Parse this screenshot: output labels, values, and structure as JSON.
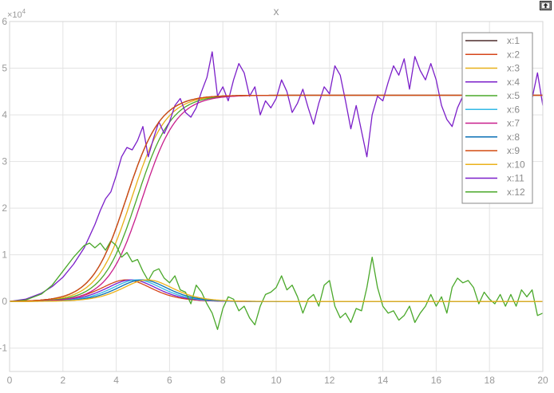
{
  "window": {
    "undock_icon": "undock-arrow-icon"
  },
  "colors": {
    "background": "#ffffff",
    "grid": "#e3e3e3",
    "axis_text": "#9a9a9a",
    "legend_border": "#8a8a8a",
    "legend_text": "#8a8a8a"
  },
  "chart_data": {
    "type": "line",
    "title": "x",
    "xlabel": "",
    "ylabel": "",
    "exponent_label": "×10",
    "exponent_power": "4",
    "xlim": [
      0,
      20
    ],
    "ylim": [
      -15000,
      60000
    ],
    "xticks": [
      0,
      2,
      4,
      6,
      8,
      10,
      12,
      14,
      16,
      18,
      20
    ],
    "yticks": [
      -10000,
      0,
      10000,
      20000,
      30000,
      40000,
      50000,
      60000
    ],
    "ytick_labels": [
      "-1",
      "0",
      "1",
      "2",
      "3",
      "4",
      "5",
      "6"
    ],
    "grid": true,
    "legend_position": "top-right",
    "logistic": {
      "K": 44200,
      "P0": 50,
      "r": 1.55
    },
    "series": [
      {
        "name": "x:1",
        "color": "#4d2c2c",
        "kind": "logistic",
        "delay": 0.0
      },
      {
        "name": "x:2",
        "color": "#d6451a",
        "kind": "prey",
        "delay": 0.0
      },
      {
        "name": "x:3",
        "color": "#e8b018",
        "kind": "logistic",
        "delay": 0.2
      },
      {
        "name": "x:4",
        "color": "#7b1fc9",
        "kind": "prey",
        "delay": 0.2
      },
      {
        "name": "x:5",
        "color": "#4aa82a",
        "kind": "logistic",
        "delay": 0.4
      },
      {
        "name": "x:6",
        "color": "#33b9e6",
        "kind": "prey",
        "delay": 0.4
      },
      {
        "name": "x:7",
        "color": "#c81e8c",
        "kind": "logistic",
        "delay": 0.6
      },
      {
        "name": "x:8",
        "color": "#0a6fb5",
        "kind": "prey",
        "delay": 0.6
      },
      {
        "name": "x:9",
        "color": "#d34c10",
        "kind": "logistic",
        "delay": 0.0,
        "final": true
      },
      {
        "name": "x:10",
        "color": "#ebb21a",
        "kind": "prey",
        "delay": 0.8,
        "final": true
      },
      {
        "name": "x:11",
        "color": "#7b1fc9",
        "kind": "noisy_logistic",
        "delay": 0.8,
        "points": [
          [
            0.0,
            0
          ],
          [
            0.6,
            500
          ],
          [
            1.2,
            1800
          ],
          [
            1.6,
            3200
          ],
          [
            2.0,
            5200
          ],
          [
            2.4,
            8000
          ],
          [
            2.8,
            11500
          ],
          [
            3.0,
            14000
          ],
          [
            3.2,
            16500
          ],
          [
            3.4,
            19500
          ],
          [
            3.6,
            22000
          ],
          [
            3.8,
            23500
          ],
          [
            4.0,
            27000
          ],
          [
            4.2,
            31000
          ],
          [
            4.4,
            33000
          ],
          [
            4.6,
            32500
          ],
          [
            4.8,
            34500
          ],
          [
            5.0,
            37500
          ],
          [
            5.2,
            31000
          ],
          [
            5.4,
            35000
          ],
          [
            5.6,
            38500
          ],
          [
            5.8,
            36000
          ],
          [
            6.0,
            38500
          ],
          [
            6.2,
            42000
          ],
          [
            6.4,
            43500
          ],
          [
            6.6,
            40500
          ],
          [
            6.8,
            39500
          ],
          [
            7.0,
            41500
          ],
          [
            7.2,
            45000
          ],
          [
            7.4,
            48000
          ],
          [
            7.6,
            53500
          ],
          [
            7.8,
            44000
          ],
          [
            8.0,
            46000
          ],
          [
            8.2,
            43000
          ],
          [
            8.4,
            47500
          ],
          [
            8.6,
            51000
          ],
          [
            8.8,
            49000
          ],
          [
            9.0,
            44000
          ],
          [
            9.2,
            46000
          ],
          [
            9.4,
            40000
          ],
          [
            9.6,
            43000
          ],
          [
            9.8,
            41500
          ],
          [
            10.0,
            43500
          ],
          [
            10.2,
            47500
          ],
          [
            10.4,
            45000
          ],
          [
            10.6,
            40500
          ],
          [
            10.8,
            42500
          ],
          [
            11.0,
            45500
          ],
          [
            11.2,
            41500
          ],
          [
            11.4,
            38000
          ],
          [
            11.6,
            42500
          ],
          [
            11.8,
            46000
          ],
          [
            12.0,
            44500
          ],
          [
            12.2,
            50500
          ],
          [
            12.4,
            48500
          ],
          [
            12.6,
            43000
          ],
          [
            12.8,
            37000
          ],
          [
            13.0,
            42000
          ],
          [
            13.2,
            36500
          ],
          [
            13.4,
            31000
          ],
          [
            13.6,
            40000
          ],
          [
            13.8,
            44000
          ],
          [
            14.0,
            43000
          ],
          [
            14.2,
            47000
          ],
          [
            14.4,
            50500
          ],
          [
            14.6,
            48500
          ],
          [
            14.8,
            52000
          ],
          [
            15.0,
            45500
          ],
          [
            15.2,
            52500
          ],
          [
            15.4,
            49500
          ],
          [
            15.6,
            47500
          ],
          [
            15.8,
            51000
          ],
          [
            16.0,
            47500
          ],
          [
            16.2,
            42000
          ],
          [
            16.4,
            39000
          ],
          [
            16.6,
            37500
          ],
          [
            16.8,
            41500
          ],
          [
            17.0,
            44000
          ],
          [
            17.2,
            40500
          ],
          [
            17.4,
            45500
          ],
          [
            17.6,
            43500
          ],
          [
            17.8,
            46500
          ],
          [
            18.0,
            41000
          ],
          [
            18.2,
            44500
          ],
          [
            18.4,
            47500
          ],
          [
            18.6,
            40500
          ],
          [
            18.8,
            42000
          ],
          [
            19.0,
            46000
          ],
          [
            19.2,
            43000
          ],
          [
            19.4,
            46500
          ],
          [
            19.6,
            43500
          ],
          [
            19.8,
            49000
          ],
          [
            20.0,
            42000
          ]
        ]
      },
      {
        "name": "x:12",
        "color": "#4aa82a",
        "kind": "noisy_prey",
        "delay": 0.8,
        "points": [
          [
            0.0,
            0
          ],
          [
            0.6,
            300
          ],
          [
            1.2,
            1600
          ],
          [
            1.6,
            3500
          ],
          [
            2.0,
            6500
          ],
          [
            2.4,
            9500
          ],
          [
            2.8,
            12000
          ],
          [
            3.0,
            12500
          ],
          [
            3.2,
            11500
          ],
          [
            3.4,
            12500
          ],
          [
            3.6,
            11000
          ],
          [
            3.8,
            13000
          ],
          [
            4.0,
            12000
          ],
          [
            4.2,
            9500
          ],
          [
            4.4,
            10500
          ],
          [
            4.6,
            8500
          ],
          [
            4.8,
            9000
          ],
          [
            5.0,
            6500
          ],
          [
            5.2,
            4500
          ],
          [
            5.4,
            6500
          ],
          [
            5.6,
            7000
          ],
          [
            5.8,
            5000
          ],
          [
            6.0,
            4000
          ],
          [
            6.2,
            5500
          ],
          [
            6.4,
            2500
          ],
          [
            6.6,
            2000
          ],
          [
            6.8,
            -500
          ],
          [
            7.0,
            3500
          ],
          [
            7.2,
            2000
          ],
          [
            7.4,
            -500
          ],
          [
            7.6,
            -2500
          ],
          [
            7.8,
            -6000
          ],
          [
            8.0,
            -1500
          ],
          [
            8.2,
            1000
          ],
          [
            8.4,
            500
          ],
          [
            8.6,
            -2000
          ],
          [
            8.8,
            -1000
          ],
          [
            9.0,
            -3500
          ],
          [
            9.2,
            -5000
          ],
          [
            9.4,
            -1000
          ],
          [
            9.6,
            1500
          ],
          [
            9.8,
            2000
          ],
          [
            10.0,
            3000
          ],
          [
            10.2,
            5500
          ],
          [
            10.4,
            2500
          ],
          [
            10.6,
            3500
          ],
          [
            10.8,
            1000
          ],
          [
            11.0,
            -2500
          ],
          [
            11.2,
            500
          ],
          [
            11.4,
            1500
          ],
          [
            11.6,
            -1000
          ],
          [
            11.8,
            3500
          ],
          [
            12.0,
            4500
          ],
          [
            12.2,
            -1000
          ],
          [
            12.4,
            -3500
          ],
          [
            12.6,
            -2500
          ],
          [
            12.8,
            -4500
          ],
          [
            13.0,
            -1500
          ],
          [
            13.2,
            -2000
          ],
          [
            13.4,
            3000
          ],
          [
            13.6,
            9500
          ],
          [
            13.8,
            3000
          ],
          [
            14.0,
            -1000
          ],
          [
            14.2,
            -2500
          ],
          [
            14.4,
            -2000
          ],
          [
            14.6,
            -4000
          ],
          [
            14.8,
            -3000
          ],
          [
            15.0,
            -1000
          ],
          [
            15.2,
            -4500
          ],
          [
            15.4,
            -2500
          ],
          [
            15.6,
            -1000
          ],
          [
            15.8,
            1500
          ],
          [
            16.0,
            -1000
          ],
          [
            16.2,
            1000
          ],
          [
            16.4,
            -2500
          ],
          [
            16.6,
            3000
          ],
          [
            16.8,
            5000
          ],
          [
            17.0,
            4000
          ],
          [
            17.2,
            4500
          ],
          [
            17.4,
            3000
          ],
          [
            17.6,
            -500
          ],
          [
            17.8,
            2000
          ],
          [
            18.0,
            500
          ],
          [
            18.2,
            -500
          ],
          [
            18.4,
            1500
          ],
          [
            18.6,
            -1000
          ],
          [
            18.8,
            1500
          ],
          [
            19.0,
            -1000
          ],
          [
            19.2,
            2500
          ],
          [
            19.4,
            1000
          ],
          [
            19.6,
            2500
          ],
          [
            19.8,
            -3000
          ],
          [
            20.0,
            -2500
          ]
        ]
      }
    ]
  }
}
